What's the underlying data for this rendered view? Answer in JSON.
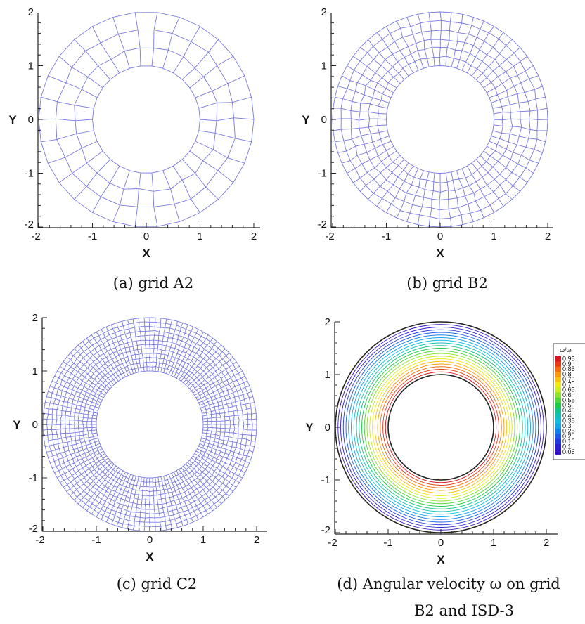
{
  "panels": [
    {
      "id": "a",
      "caption": "(a) grid A2",
      "xlabel": "X",
      "ylabel": "Y",
      "xticks": [
        "-2",
        "-1",
        "0",
        "1",
        "2"
      ],
      "yticks": [
        "-2",
        "-1",
        "0",
        "1",
        "2"
      ],
      "mesh": {
        "inner_radius": 1,
        "outer_radius": 2,
        "radial_layers": 3,
        "circumferential_cells": 30
      },
      "line_color": "#7b7bdc"
    },
    {
      "id": "b",
      "caption": "(b) grid B2",
      "xlabel": "X",
      "ylabel": "Y",
      "xticks": [
        "-2",
        "-1",
        "0",
        "1",
        "2"
      ],
      "yticks": [
        "-2",
        "-1",
        "0",
        "1",
        "2"
      ],
      "mesh": {
        "inner_radius": 1,
        "outer_radius": 2,
        "radial_layers": 6,
        "circumferential_cells": 60
      },
      "line_color": "#7b7bdc"
    },
    {
      "id": "c",
      "caption": "(c) grid C2",
      "xlabel": "X",
      "ylabel": "Y",
      "xticks": [
        "-2",
        "-1",
        "0",
        "1",
        "2"
      ],
      "yticks": [
        "-2",
        "-1",
        "0",
        "1",
        "2"
      ],
      "mesh": {
        "inner_radius": 1,
        "outer_radius": 2,
        "radial_layers": 12,
        "circumferential_cells": 120
      },
      "line_color": "#7b7bdc"
    },
    {
      "id": "d",
      "caption_lines": [
        "(d) Angular velocity ω on grid",
        "B2 and ISD-3"
      ],
      "xlabel": "X",
      "ylabel": "Y",
      "xticks": [
        "-2",
        "-1",
        "0",
        "1",
        "2"
      ],
      "yticks": [
        "-2",
        "-1",
        "0",
        "1",
        "2"
      ],
      "contours": {
        "inner_radius": 1,
        "outer_radius": 2,
        "levels": 19
      },
      "boundary_color": "#222222",
      "colorbar": {
        "title": "ω/ωᵢ",
        "labels": [
          "0.95",
          "0.9",
          "0.85",
          "0.8",
          "0.75",
          "0.7",
          "0.65",
          "0.6",
          "0.55",
          "0.5",
          "0.45",
          "0.4",
          "0.35",
          "0.3",
          "0.25",
          "0.2",
          "0.15",
          "0.1",
          "0.05"
        ],
        "colors": [
          "#d8141e",
          "#ea3a14",
          "#f56a10",
          "#fb9a0e",
          "#fbc10e",
          "#f4ea13",
          "#c9ed1e",
          "#8ee12e",
          "#4fd63a",
          "#1dc946",
          "#12c486",
          "#10c2b6",
          "#12bde0",
          "#13a4ea",
          "#1381ea",
          "#1a5ce8",
          "#2238de",
          "#2a1ed2",
          "#3412c2"
        ]
      }
    }
  ]
}
